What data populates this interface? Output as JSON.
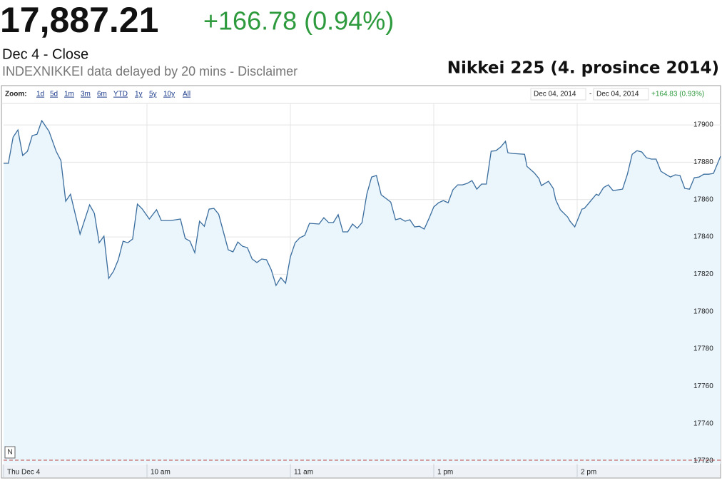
{
  "header": {
    "price": "17,887.21",
    "change": "+166.78 (0.94%)",
    "date": "Dec 4 - Close",
    "note": "INDEXNIKKEI data delayed by 20 mins - Disclaimer"
  },
  "zoom": {
    "label": "Zoom:",
    "options": [
      "1d",
      "5d",
      "1m",
      "3m",
      "6m",
      "YTD",
      "1y",
      "5y",
      "10y",
      "All"
    ]
  },
  "range": {
    "start": "Dec 04, 2014",
    "separator": "-",
    "end": "Dec 04, 2014",
    "change": "+164.83 (0.93%)"
  },
  "chart_data": {
    "type": "area",
    "title": "Nikkei 225 (4. prosince 2014)",
    "flag": "N",
    "color": "#3a6d9e",
    "fill": "#eaf5fc",
    "reference_line": 17720.43,
    "reference_color": "#c0504d",
    "grid": true,
    "xlim": [
      0,
      300
    ],
    "xticks": [
      {
        "value": 0,
        "label": "Thu Dec 4"
      },
      {
        "value": 60,
        "label": "10 am"
      },
      {
        "value": 120,
        "label": "11 am"
      },
      {
        "value": 180,
        "label": "1 pm"
      },
      {
        "value": 240,
        "label": "2 pm"
      }
    ],
    "ylim": [
      17718.5,
      17911.5
    ],
    "yticks": [
      17720,
      17740,
      17760,
      17780,
      17800,
      17820,
      17840,
      17860,
      17880,
      17900
    ],
    "x": [
      0,
      2,
      4,
      6,
      8,
      10,
      12,
      14,
      16,
      19,
      22,
      24,
      26,
      28,
      30,
      32,
      36,
      38,
      40,
      42,
      44,
      46,
      48,
      50,
      52,
      54,
      56,
      58,
      61,
      64,
      66,
      70,
      74,
      76,
      78,
      80,
      82,
      84,
      86,
      88,
      90,
      94,
      96,
      98,
      100,
      102,
      104,
      106,
      108,
      110,
      112,
      114,
      116,
      118,
      120,
      122,
      124,
      126,
      128,
      132,
      134,
      136,
      138,
      140,
      142,
      144,
      146,
      148,
      150,
      152,
      154,
      156,
      158,
      162,
      164,
      166,
      168,
      170,
      172,
      174,
      176,
      178,
      180,
      182,
      184,
      186,
      188,
      190,
      192,
      194,
      196,
      198,
      200,
      202,
      204,
      206,
      208,
      210,
      211,
      213,
      218,
      219,
      222,
      224,
      225,
      228,
      230,
      231,
      233,
      236,
      237,
      239,
      242,
      243,
      245,
      248,
      249,
      251,
      253,
      255,
      257,
      259,
      261,
      263,
      265,
      267,
      269,
      271,
      273,
      275,
      277,
      279,
      281,
      283,
      285,
      287,
      289,
      291,
      293,
      295,
      297,
      300
    ],
    "values": [
      17879.4,
      17879.4,
      17893.5,
      17897.3,
      17883.6,
      17885.9,
      17894.3,
      17895.0,
      17902.3,
      17896.6,
      17885.9,
      17880.9,
      17859.1,
      17862.9,
      17852.2,
      17841.5,
      17857.2,
      17852.6,
      17836.9,
      17840.4,
      17817.8,
      17821.6,
      17827.8,
      17837.7,
      17836.9,
      17838.9,
      17857.6,
      17855.0,
      17849.6,
      17854.6,
      17848.8,
      17848.8,
      17849.6,
      17839.2,
      17837.7,
      17831.6,
      17848.4,
      17845.7,
      17854.9,
      17855.3,
      17852.2,
      17833.1,
      17832.0,
      17837.3,
      17835.0,
      17834.3,
      17828.2,
      17826.3,
      17828.2,
      17827.8,
      17822.4,
      17814.0,
      17818.2,
      17815.2,
      17829.3,
      17836.9,
      17839.6,
      17840.8,
      17847.3,
      17846.9,
      17850.3,
      17847.7,
      17847.7,
      17851.9,
      17842.7,
      17842.7,
      17846.9,
      17844.6,
      17847.7,
      17863.0,
      17872.1,
      17872.9,
      17862.6,
      17858.7,
      17849.2,
      17849.9,
      17848.4,
      17849.2,
      17845.4,
      17845.7,
      17844.2,
      17849.9,
      17856.1,
      17858.3,
      17859.5,
      17858.3,
      17865.2,
      17867.9,
      17867.9,
      17868.7,
      17870.2,
      17865.6,
      17868.3,
      17868.3,
      17885.9,
      17886.2,
      17888.2,
      17891.2,
      17885.1,
      17884.7,
      17884.3,
      17877.8,
      17874.4,
      17871.3,
      17867.5,
      17869.8,
      17866.0,
      17859.9,
      17854.5,
      17850.7,
      17848.4,
      17845.4,
      17854.9,
      17855.3,
      17858.3,
      17862.9,
      17862.2,
      17866.4,
      17867.9,
      17864.8,
      17865.2,
      17865.6,
      17873.6,
      17884.3,
      17886.2,
      17885.5,
      17882.4,
      17881.7,
      17881.7,
      17875.2,
      17873.6,
      17872.1,
      17873.3,
      17872.9,
      17866.0,
      17865.6,
      17871.7,
      17872.1,
      17873.6,
      17873.6,
      17874.0,
      17883.2
    ]
  }
}
